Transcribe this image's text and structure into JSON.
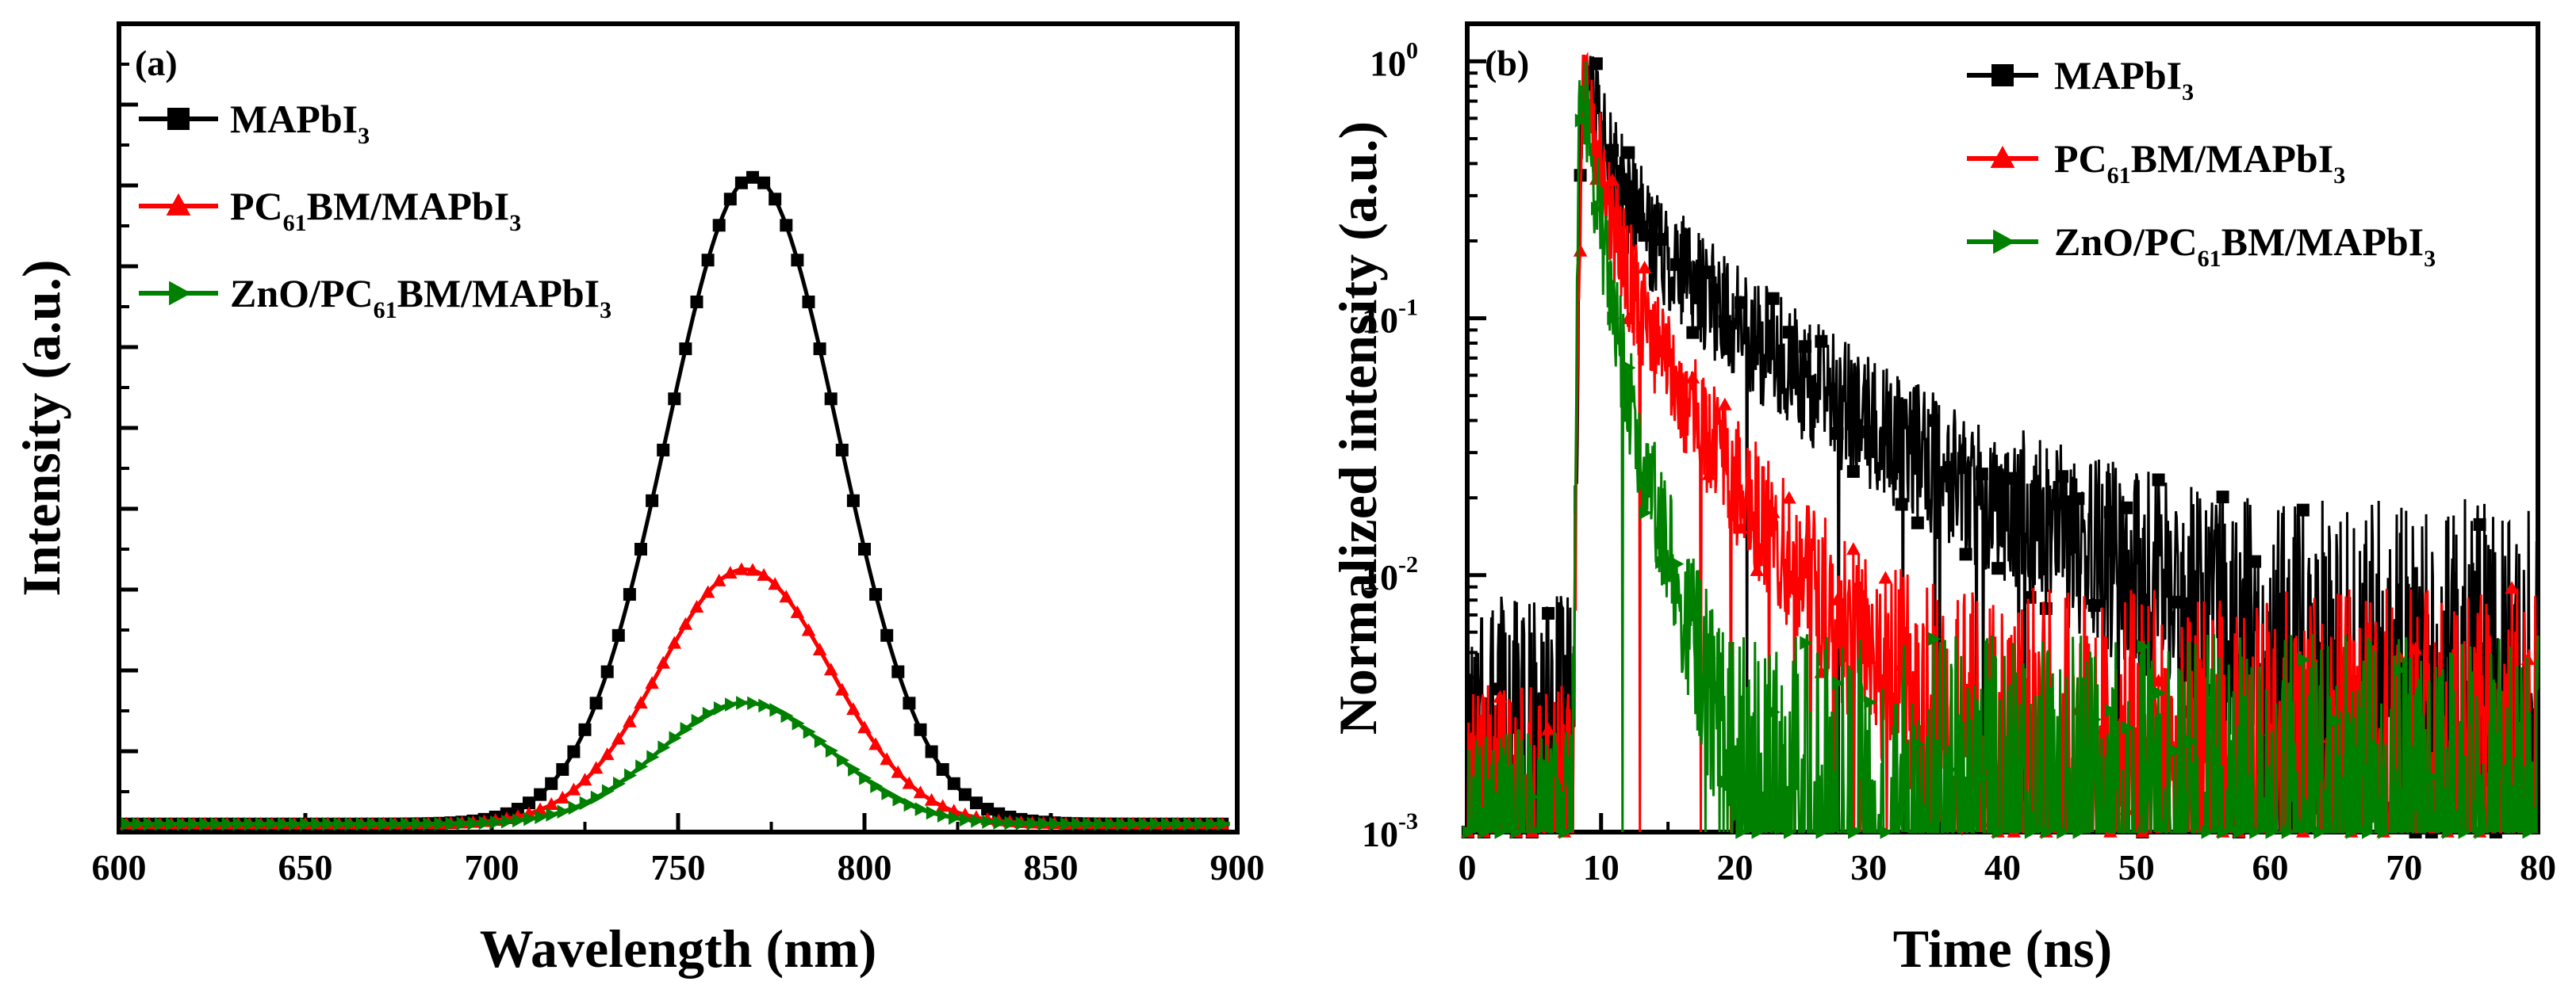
{
  "chart_data": [
    {
      "type": "line",
      "panel_label": "(a)",
      "xlabel": "Wavelength (nm)",
      "ylabel": "Intensity (a.u.)",
      "xlim": [
        600,
        900
      ],
      "ylim": [
        0,
        1.0
      ],
      "x_ticks": [
        600,
        650,
        700,
        750,
        800,
        850,
        900
      ],
      "y_tick_labels": "none",
      "legend_position": "top-left",
      "series": [
        {
          "name": "MAPbI3",
          "name_parts": [
            "MAPbI",
            "3",
            ""
          ],
          "color": "#000000",
          "marker": "square",
          "peak_x": 770,
          "peak_y": 0.8,
          "fwhm_nm": 54,
          "baseline": 0.01
        },
        {
          "name": "PC61BM/MAPbI3",
          "name_parts": [
            "PC",
            "61",
            "BM/MAPbI",
            "3"
          ],
          "color": "#ff0000",
          "marker": "triangle-up",
          "peak_x": 768,
          "peak_y": 0.315,
          "fwhm_nm": 54,
          "baseline": 0.01
        },
        {
          "name": "ZnO/PC61BM/MAPbI3",
          "name_parts": [
            "ZnO/PC",
            "61",
            "BM/MAPbI",
            "3"
          ],
          "color": "#008000",
          "marker": "triangle-right",
          "peak_x": 768,
          "peak_y": 0.15,
          "fwhm_nm": 54,
          "baseline": 0.01
        }
      ]
    },
    {
      "type": "scatter",
      "panel_label": "(b)",
      "xlabel": "Time (ns)",
      "ylabel": "Normalized intensity (a.u.)",
      "xlim": [
        0,
        80
      ],
      "ylim": [
        0.001,
        1.4
      ],
      "yscale": "log",
      "x_ticks": [
        0,
        10,
        20,
        30,
        40,
        50,
        60,
        70,
        80
      ],
      "y_ticks": [
        0.001,
        0.01,
        0.1,
        1
      ],
      "y_tick_labels": [
        "10",
        "10",
        "10",
        "10"
      ],
      "y_tick_exponents": [
        "-3",
        "-2",
        "-1",
        "0"
      ],
      "legend_position": "top-right",
      "series": [
        {
          "name": "MAPbI3",
          "name_parts": [
            "MAPbI",
            "3",
            ""
          ],
          "color": "#000000",
          "marker": "square",
          "rise_start_x": 7.8,
          "peak_x": 8.6,
          "decay_components": [
            [
              0.6,
              1.2
            ],
            [
              0.3,
              6
            ],
            [
              0.1,
              18
            ]
          ],
          "noise_floor": 0.004
        },
        {
          "name": "PC61BM/MAPbI3",
          "name_parts": [
            "PC",
            "61",
            "BM/MAPbI",
            "3"
          ],
          "color": "#ff0000",
          "marker": "triangle-up",
          "rise_start_x": 7.8,
          "peak_x": 8.6,
          "decay_components": [
            [
              0.7,
              1.0
            ],
            [
              0.25,
              3.5
            ],
            [
              0.05,
              9
            ]
          ],
          "noise_floor": 0.0018
        },
        {
          "name": "ZnO/PC61BM/MAPbI3",
          "name_parts": [
            "ZnO/PC",
            "61",
            "BM/MAPbI",
            "3"
          ],
          "color": "#008000",
          "marker": "triangle-right",
          "rise_start_x": 7.8,
          "peak_x": 8.4,
          "decay_components": [
            [
              0.85,
              0.9
            ],
            [
              0.15,
              2.6
            ]
          ],
          "noise_floor": 0.0012
        }
      ]
    }
  ]
}
